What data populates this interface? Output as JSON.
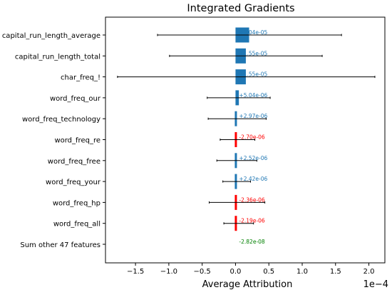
{
  "chart_data": {
    "type": "bar",
    "orientation": "horizontal",
    "title": "Integrated Gradients",
    "xlabel": "Average Attribution",
    "ylabel": "",
    "x_scale_label": "1e−4",
    "xlim": [
      -0.000195,
      0.000224
    ],
    "xticks": [
      -0.00015,
      -0.0001,
      -5e-05,
      0,
      5e-05,
      0.0001,
      0.00015,
      0.0002
    ],
    "xtick_labels": [
      "−1.5",
      "−1.0",
      "−0.5",
      "0.0",
      "0.5",
      "1.0",
      "1.5",
      "2.0"
    ],
    "grid": false,
    "categories": [
      "capital_run_length_average",
      "capital_run_length_total",
      "char_freq_!",
      "word_freq_our",
      "word_freq_technology",
      "word_freq_re",
      "word_freq_free",
      "word_freq_your",
      "word_freq_hp",
      "word_freq_all",
      "Sum other 47 features"
    ],
    "values": [
      2.04e-05,
      1.55e-05,
      1.55e-05,
      5.04e-06,
      2.97e-06,
      -2.7e-06,
      2.52e-06,
      2.42e-06,
      -2.36e-06,
      -2.19e-06,
      -2.82e-08
    ],
    "value_labels": [
      "+2.04e-05",
      "+1.55e-05",
      "+1.55e-05",
      "+5.04e-06",
      "+2.97e-06",
      "-2.70e-06",
      "+2.52e-06",
      "+2.42e-06",
      "-2.36e-06",
      "-2.19e-06",
      "-2.82e-08"
    ],
    "error_low": [
      -0.000117,
      -9.9e-05,
      -0.000177,
      -4.25e-05,
      -4.1e-05,
      -2.3e-05,
      -2.8e-05,
      -1.9e-05,
      -3.95e-05,
      -1.75e-05,
      null
    ],
    "error_high": [
      0.000159,
      0.00013,
      0.000209,
      5.2e-05,
      4.6e-05,
      2.9e-05,
      3.2e-05,
      2.25e-05,
      4.4e-05,
      2.7e-05,
      null
    ],
    "colors": {
      "positive": "#1f77b4",
      "negative": "#ff0000",
      "sum_other": "#008000",
      "error_bar": "#000000",
      "axis": "#000000"
    }
  }
}
